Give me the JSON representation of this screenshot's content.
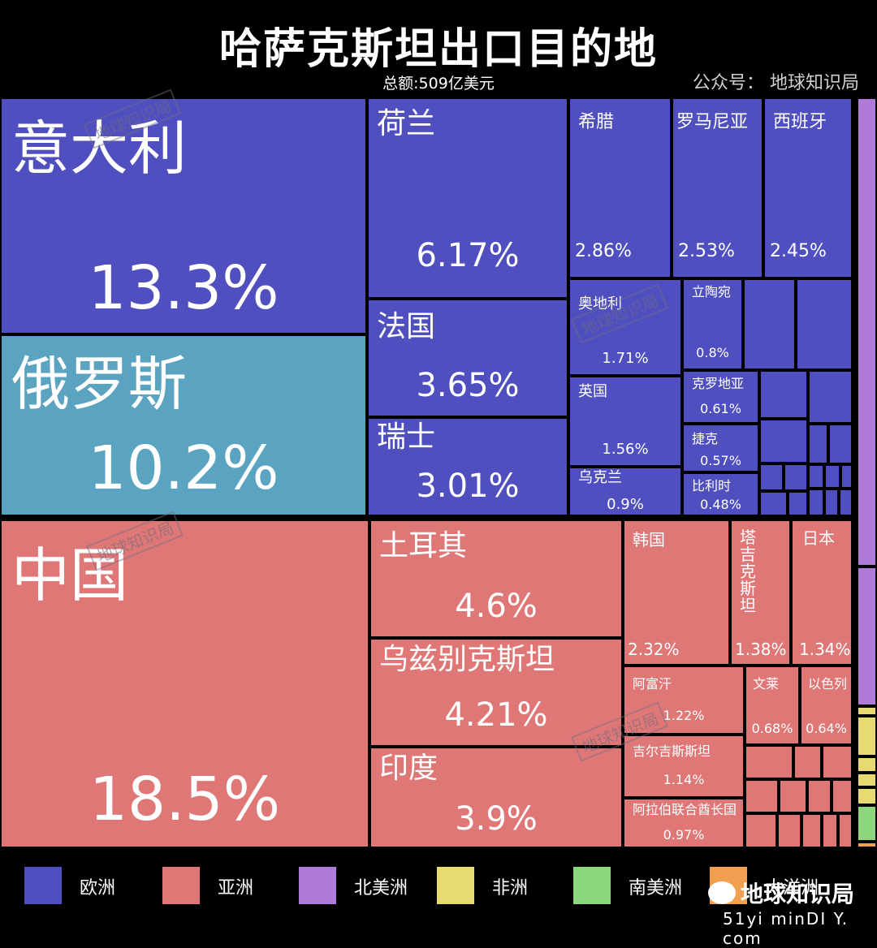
{
  "header": {
    "title": "哈萨克斯坦出口目的地",
    "subtitle": "总额:509亿美元",
    "source": "公众号： 地球知识局"
  },
  "colors": {
    "欧洲": "#4f4fbf",
    "俄罗斯": "#5aa3c1",
    "亚洲": "#e07777",
    "北美洲": "#b07ad8",
    "非洲": "#e6da70",
    "南美洲": "#8cd67d",
    "大洋洲": "#f0a050"
  },
  "legend": [
    {
      "label": "欧洲",
      "color": "#4f4fbf"
    },
    {
      "label": "亚洲",
      "color": "#e07777"
    },
    {
      "label": "北美洲",
      "color": "#b07ad8"
    },
    {
      "label": "非洲",
      "color": "#e6da70"
    },
    {
      "label": "南美洲",
      "color": "#8cd67d"
    },
    {
      "label": "大洋洲",
      "color": "#f0a050"
    }
  ],
  "watermark": "地球知识局",
  "footer": {
    "brand": "地球知识局",
    "site": "51yi minDI Y. com"
  },
  "chart_data": {
    "type": "treemap",
    "total": "509亿美元",
    "items": [
      {
        "name": "意大利",
        "value": "13.3%",
        "region": "欧洲"
      },
      {
        "name": "俄罗斯",
        "value": "10.2%",
        "region": "俄罗斯"
      },
      {
        "name": "中国",
        "value": "18.5%",
        "region": "亚洲"
      },
      {
        "name": "荷兰",
        "value": "6.17%",
        "region": "欧洲"
      },
      {
        "name": "法国",
        "value": "3.65%",
        "region": "欧洲"
      },
      {
        "name": "瑞士",
        "value": "3.01%",
        "region": "欧洲"
      },
      {
        "name": "希腊",
        "value": "2.86%",
        "region": "欧洲"
      },
      {
        "name": "罗马尼亚",
        "value": "2.53%",
        "region": "欧洲"
      },
      {
        "name": "西班牙",
        "value": "2.45%",
        "region": "欧洲"
      },
      {
        "name": "奥地利",
        "value": "1.71%",
        "region": "欧洲"
      },
      {
        "name": "英国",
        "value": "1.56%",
        "region": "欧洲"
      },
      {
        "name": "乌克兰",
        "value": "0.9%",
        "region": "欧洲"
      },
      {
        "name": "立陶宛",
        "value": "0.8%",
        "region": "欧洲"
      },
      {
        "name": "克罗地亚",
        "value": "0.61%",
        "region": "欧洲"
      },
      {
        "name": "捷克",
        "value": "0.57%",
        "region": "欧洲"
      },
      {
        "name": "比利时",
        "value": "0.48%",
        "region": "欧洲"
      },
      {
        "name": "土耳其",
        "value": "4.6%",
        "region": "亚洲"
      },
      {
        "name": "乌兹别克斯坦",
        "value": "4.21%",
        "region": "亚洲"
      },
      {
        "name": "印度",
        "value": "3.9%",
        "region": "亚洲"
      },
      {
        "name": "韩国",
        "value": "2.32%",
        "region": "亚洲"
      },
      {
        "name": "塔吉克斯坦",
        "value": "1.38%",
        "region": "亚洲"
      },
      {
        "name": "日本",
        "value": "1.34%",
        "region": "亚洲"
      },
      {
        "name": "阿富汗",
        "value": "1.22%",
        "region": "亚洲"
      },
      {
        "name": "文莱",
        "value": "0.68%",
        "region": "亚洲"
      },
      {
        "name": "以色列",
        "value": "0.64%",
        "region": "亚洲"
      },
      {
        "name": "吉尔吉斯斯坦",
        "value": "1.14%",
        "region": "亚洲"
      },
      {
        "name": "阿拉伯联合酋长国",
        "value": "0.97%",
        "region": "亚洲"
      }
    ]
  }
}
